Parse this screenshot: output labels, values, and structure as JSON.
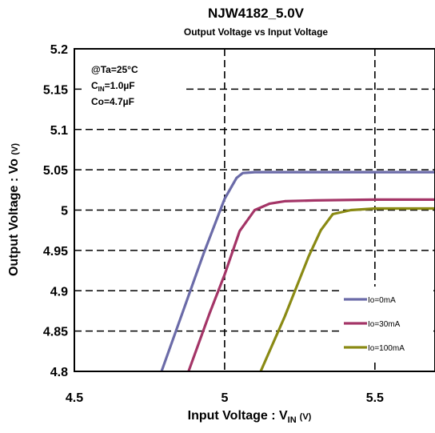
{
  "chart_data": {
    "type": "line",
    "title": "NJW4182_5.0V",
    "subtitle": "Output Voltage vs Input Voltage",
    "xlabel": {
      "main": "Input Voltage : V",
      "sub": "IN",
      "unit": "(V)"
    },
    "ylabel": {
      "main": "Output Voltage : Vo",
      "unit": "(V)"
    },
    "xlim": [
      4.5,
      5.7
    ],
    "ylim": [
      4.8,
      5.2
    ],
    "xticks": [
      "4.5",
      "5",
      "5.5"
    ],
    "xtick_values": [
      4.5,
      5.0,
      5.5
    ],
    "yticks": [
      "5.2",
      "5.15",
      "5.1",
      "5.05",
      "5",
      "4.95",
      "4.9",
      "4.85",
      "4.8"
    ],
    "ytick_values": [
      5.2,
      5.15,
      5.1,
      5.05,
      5.0,
      4.95,
      4.9,
      4.85,
      4.8
    ],
    "grid": "dashed",
    "conditions": [
      {
        "main": "@Ta=25°C"
      },
      {
        "main": "C",
        "sub": "IN",
        "rest": "=1.0µF"
      },
      {
        "main": "Co=4.7µF"
      }
    ],
    "legend_position": "bottom-right",
    "series": [
      {
        "name": "Io=0mA",
        "color": "#6b6ba8",
        "points": [
          [
            4.79,
            4.8
          ],
          [
            4.86,
            4.873
          ],
          [
            4.93,
            4.946
          ],
          [
            5.0,
            5.014
          ],
          [
            5.04,
            5.04
          ],
          [
            5.06,
            5.046
          ],
          [
            5.1,
            5.047
          ],
          [
            5.3,
            5.047
          ],
          [
            5.5,
            5.047
          ],
          [
            5.7,
            5.047
          ]
        ]
      },
      {
        "name": "Io=30mA",
        "color": "#a43567",
        "points": [
          [
            4.88,
            4.8
          ],
          [
            4.95,
            4.872
          ],
          [
            5.0,
            4.92
          ],
          [
            5.05,
            4.974
          ],
          [
            5.1,
            5.0
          ],
          [
            5.15,
            5.008
          ],
          [
            5.2,
            5.011
          ],
          [
            5.3,
            5.012
          ],
          [
            5.5,
            5.013
          ],
          [
            5.7,
            5.013
          ]
        ]
      },
      {
        "name": "Io=100mA",
        "color": "#8a8a14",
        "points": [
          [
            5.12,
            4.8
          ],
          [
            5.2,
            4.868
          ],
          [
            5.28,
            4.943
          ],
          [
            5.32,
            4.975
          ],
          [
            5.36,
            4.995
          ],
          [
            5.42,
            5.0
          ],
          [
            5.5,
            5.002
          ],
          [
            5.7,
            5.002
          ]
        ]
      }
    ]
  }
}
